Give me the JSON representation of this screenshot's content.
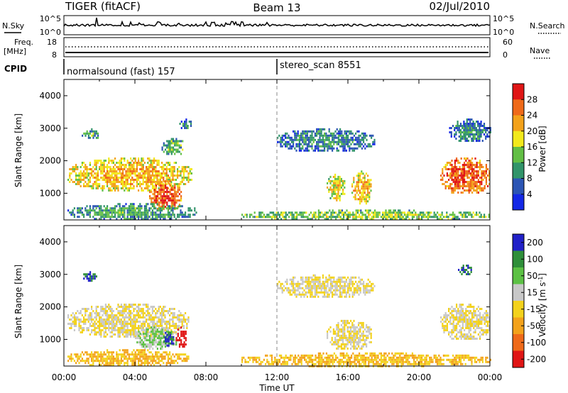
{
  "header": {
    "title": "TIGER (fitACF)",
    "beam": "Beam 13",
    "date": "02/Jul/2010"
  },
  "summary_panels": {
    "nsky_label": "N.Sky",
    "nsearch_label": "N.Search",
    "noise_ticks": [
      "10^5",
      "10^0"
    ],
    "freq_label_1": "Freq.",
    "freq_label_2": "[MHz]",
    "freq_ticks": [
      "18",
      "8"
    ],
    "nave_label": "Nave",
    "nave_ticks": [
      "60",
      "0"
    ],
    "cpid_label": "CPID",
    "cpid_segments": [
      {
        "label": "normalsound (fast) 157",
        "start_hour": 0
      },
      {
        "label": "stereo_scan 8551",
        "start_hour": 12
      }
    ]
  },
  "chart_data": [
    {
      "type": "heatmap",
      "name": "power",
      "xlabel": "",
      "ylabel": "Slant Range [km]",
      "xlim": [
        0,
        24
      ],
      "ylim": [
        180,
        4500
      ],
      "yticks": [
        1000,
        2000,
        3000,
        4000
      ],
      "colorbar": {
        "label": "Power [dB]",
        "ticks": [
          "4",
          "8",
          "12",
          "16",
          "20",
          "24",
          "28"
        ],
        "colors": [
          "#1428e6",
          "#2c55b4",
          "#31946a",
          "#62bf45",
          "#f2e91c",
          "#f3a21b",
          "#ef6a1a",
          "#e01616"
        ]
      },
      "echo_regions": [
        {
          "x0": 0.2,
          "x1": 7.2,
          "y0": 1100,
          "y1": 2100,
          "level": 20
        },
        {
          "x0": 4.8,
          "x1": 6.6,
          "y0": 500,
          "y1": 1400,
          "level": 26
        },
        {
          "x0": 0.2,
          "x1": 7.5,
          "y0": 200,
          "y1": 700,
          "level": 10
        },
        {
          "x0": 1.0,
          "x1": 2.0,
          "y0": 2700,
          "y1": 3000,
          "level": 10
        },
        {
          "x0": 5.5,
          "x1": 6.8,
          "y0": 2200,
          "y1": 2700,
          "level": 12
        },
        {
          "x0": 6.5,
          "x1": 7.2,
          "y0": 3000,
          "y1": 3300,
          "level": 8
        },
        {
          "x0": 12.0,
          "x1": 17.5,
          "y0": 2300,
          "y1": 3000,
          "level": 8
        },
        {
          "x0": 14.8,
          "x1": 15.8,
          "y0": 800,
          "y1": 1600,
          "level": 18
        },
        {
          "x0": 16.2,
          "x1": 17.3,
          "y0": 700,
          "y1": 1700,
          "level": 20
        },
        {
          "x0": 10.0,
          "x1": 24.0,
          "y0": 200,
          "y1": 500,
          "level": 14
        },
        {
          "x0": 21.2,
          "x1": 24.0,
          "y0": 1000,
          "y1": 2100,
          "level": 26
        },
        {
          "x0": 21.7,
          "x1": 24.0,
          "y0": 2600,
          "y1": 3300,
          "level": 8
        }
      ]
    },
    {
      "type": "heatmap",
      "name": "velocity",
      "xlabel": "Time UT",
      "ylabel": "Slant Range [km]",
      "xlim": [
        0,
        24
      ],
      "ylim": [
        180,
        4500
      ],
      "yticks": [
        1000,
        2000,
        3000,
        4000
      ],
      "xticks": [
        "00:00",
        "04:00",
        "08:00",
        "12:00",
        "16:00",
        "20:00",
        "00:00"
      ],
      "colorbar": {
        "label": "Velocity [m s",
        "label_superscript": "-1",
        "label_end": "]",
        "ticks": [
          "200",
          "100",
          "50",
          "15",
          "-15",
          "-50",
          "-100",
          "-200"
        ],
        "colors": [
          "#2121c8",
          "#2f8f3a",
          "#5cc144",
          "#c8c8c8",
          "#f3d21c",
          "#f3a21b",
          "#ef6a1a",
          "#e01616"
        ]
      },
      "echo_regions": [
        {
          "x0": 0.2,
          "x1": 7.0,
          "y0": 1100,
          "y1": 2100,
          "level": 15
        },
        {
          "x0": 4.0,
          "x1": 6.4,
          "y0": 700,
          "y1": 1400,
          "level": 50
        },
        {
          "x0": 5.6,
          "x1": 6.2,
          "y0": 800,
          "y1": 1300,
          "level": 200
        },
        {
          "x0": 6.3,
          "x1": 6.9,
          "y0": 800,
          "y1": 1400,
          "level": -200
        },
        {
          "x0": 0.2,
          "x1": 7.0,
          "y0": 200,
          "y1": 700,
          "level": -15
        },
        {
          "x0": 1.0,
          "x1": 1.8,
          "y0": 2800,
          "y1": 3100,
          "level": 200
        },
        {
          "x0": 12.0,
          "x1": 17.5,
          "y0": 2300,
          "y1": 3000,
          "level": 15
        },
        {
          "x0": 14.8,
          "x1": 17.3,
          "y0": 700,
          "y1": 1600,
          "level": 15
        },
        {
          "x0": 10.0,
          "x1": 24.0,
          "y0": 200,
          "y1": 600,
          "level": -15
        },
        {
          "x0": 21.2,
          "x1": 24.0,
          "y0": 1000,
          "y1": 2100,
          "level": 15
        },
        {
          "x0": 22.2,
          "x1": 23.0,
          "y0": 3000,
          "y1": 3300,
          "level": 200
        }
      ]
    }
  ]
}
